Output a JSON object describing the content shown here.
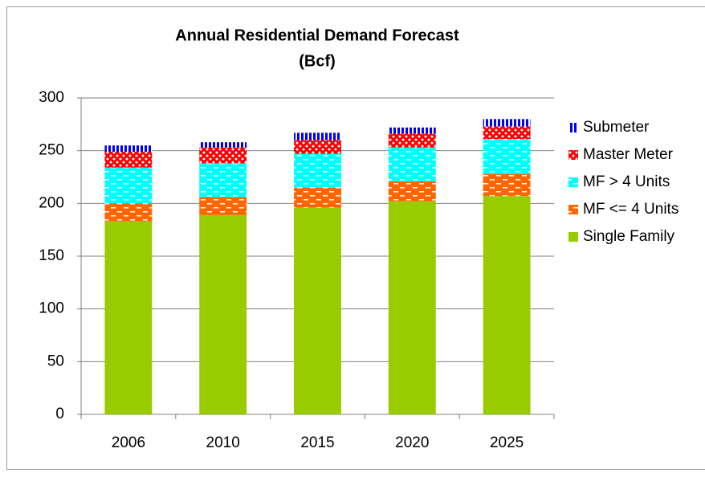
{
  "chart_data": {
    "type": "stacked_bar",
    "title": "Annual Residential Demand Forecast",
    "subtitle": "(Bcf)",
    "categories": [
      "2006",
      "2010",
      "2015",
      "2020",
      "2025"
    ],
    "series": [
      {
        "name": "Single Family",
        "color": "#99cc00",
        "pattern": "solid",
        "values": [
          183,
          189,
          196,
          202,
          207
        ]
      },
      {
        "name": "MF <= 4 Units",
        "color": "#ff6600",
        "pattern": "dashes",
        "values": [
          17,
          17,
          19,
          19,
          21
        ]
      },
      {
        "name": "MF > 4 Units",
        "color": "#00ffff",
        "pattern": "dashes",
        "values": [
          34,
          32,
          32,
          32,
          33
        ]
      },
      {
        "name": "Master Meter",
        "color": "#ff0000",
        "pattern": "dots",
        "values": [
          15,
          15,
          13,
          13,
          12
        ]
      },
      {
        "name": "Submeter",
        "color": "#0000ff",
        "pattern": "stripes",
        "values": [
          6,
          5,
          7,
          6,
          7
        ]
      }
    ],
    "ylim": [
      0,
      300
    ],
    "yticks": [
      0,
      50,
      100,
      150,
      200,
      250,
      300
    ],
    "grid": true,
    "legend": "right"
  }
}
